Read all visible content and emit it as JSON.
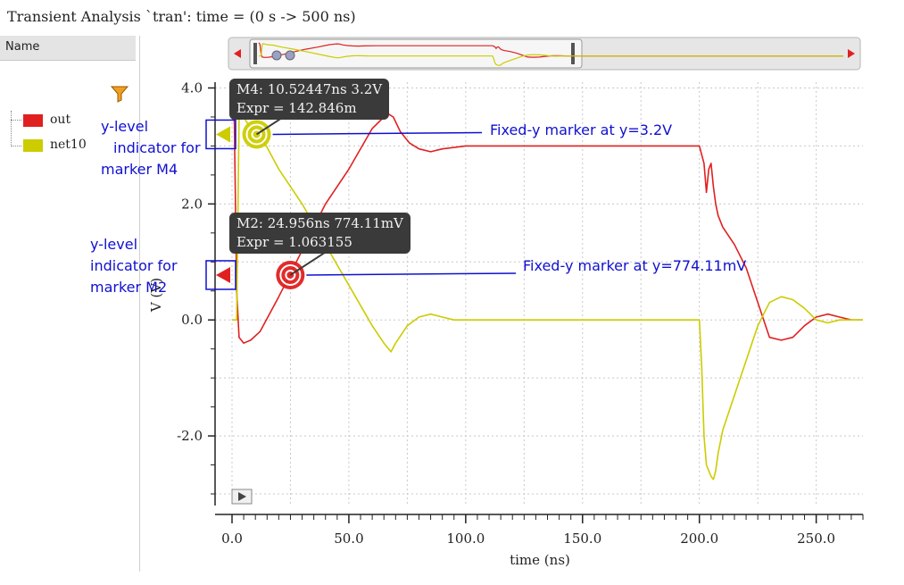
{
  "window": {
    "title": "Transient Analysis `tran': time = (0 s -> 500 ns)"
  },
  "sidebar": {
    "header": "Name",
    "legend": [
      {
        "label": "out",
        "color": "#e02020"
      },
      {
        "label": "net10",
        "color": "#cccc00"
      }
    ]
  },
  "markers": [
    {
      "name": "M4",
      "line1": "M4: 10.52447ns 3.2V",
      "line2": "Expr = 142.846m",
      "x": 10.52447,
      "y": 3.2,
      "color": "#cccc00",
      "fixed_label": "Fixed-y marker at y=3.2V",
      "indicator_lines": [
        "y-level",
        "indicator for",
        "marker M4"
      ]
    },
    {
      "name": "M2",
      "line1": "M2: 24.956ns 774.11mV",
      "line2": "Expr = 1.063155",
      "x": 24.956,
      "y": 0.77411,
      "color": "#e02020",
      "fixed_label": "Fixed-y marker at y=774.11mV",
      "indicator_lines": [
        "y-level",
        "indicator for",
        "marker M2"
      ]
    }
  ],
  "chart_data": {
    "type": "line",
    "xlabel": "time (ns)",
    "ylabel": "V (V)",
    "xlim": [
      0,
      270
    ],
    "ylim": [
      -3.2,
      4.1
    ],
    "x_ticks": [
      0,
      50,
      100,
      150,
      200,
      250
    ],
    "x_tick_labels": [
      "0.0",
      "50.0",
      "100.0",
      "150.0",
      "200.0",
      "250.0"
    ],
    "y_ticks": [
      -2,
      0,
      2,
      4
    ],
    "y_tick_labels": [
      "-2.0",
      "0.0",
      "2.0",
      "4.0"
    ],
    "grid": true,
    "series": [
      {
        "name": "out",
        "color": "#e02020",
        "x": [
          0,
          1,
          2,
          3,
          5,
          8,
          12,
          16,
          20,
          25,
          30,
          40,
          50,
          60,
          65,
          67,
          69,
          72,
          76,
          80,
          85,
          90,
          100,
          120,
          150,
          180,
          200,
          202,
          203,
          204,
          205,
          206,
          207,
          208,
          210,
          215,
          220,
          225,
          230,
          235,
          240,
          245,
          250,
          255,
          260,
          265,
          270
        ],
        "y": [
          3.9,
          3.4,
          0.5,
          -0.3,
          -0.4,
          -0.35,
          -0.2,
          0.1,
          0.4,
          0.8,
          1.2,
          2.0,
          2.6,
          3.3,
          3.5,
          3.55,
          3.5,
          3.25,
          3.05,
          2.95,
          2.9,
          2.95,
          3.0,
          3.0,
          3.0,
          3.0,
          3.0,
          2.7,
          2.2,
          2.6,
          2.7,
          2.3,
          2.0,
          1.8,
          1.6,
          1.3,
          0.9,
          0.3,
          -0.3,
          -0.35,
          -0.3,
          -0.1,
          0.05,
          0.1,
          0.05,
          0.0,
          0.0
        ]
      },
      {
        "name": "net10",
        "color": "#cccc00",
        "x": [
          0,
          1,
          2,
          3,
          4,
          5,
          8,
          12,
          20,
          30,
          40,
          50,
          60,
          65,
          68,
          70,
          75,
          80,
          85,
          90,
          95,
          100,
          150,
          200,
          201,
          202,
          203,
          205,
          206,
          207,
          208,
          210,
          215,
          220,
          225,
          230,
          235,
          240,
          245,
          250,
          255,
          260,
          265,
          270
        ],
        "y": [
          0.0,
          0.0,
          0.0,
          3.5,
          3.6,
          3.5,
          3.3,
          3.2,
          2.6,
          2.0,
          1.3,
          0.6,
          -0.1,
          -0.4,
          -0.55,
          -0.4,
          -0.1,
          0.05,
          0.1,
          0.05,
          0.0,
          0.0,
          0.0,
          0.0,
          -0.8,
          -2.0,
          -2.5,
          -2.7,
          -2.75,
          -2.6,
          -2.3,
          -1.9,
          -1.3,
          -0.7,
          -0.1,
          0.3,
          0.4,
          0.35,
          0.2,
          0.0,
          -0.05,
          0.0,
          0.0,
          0.0
        ]
      }
    ]
  }
}
